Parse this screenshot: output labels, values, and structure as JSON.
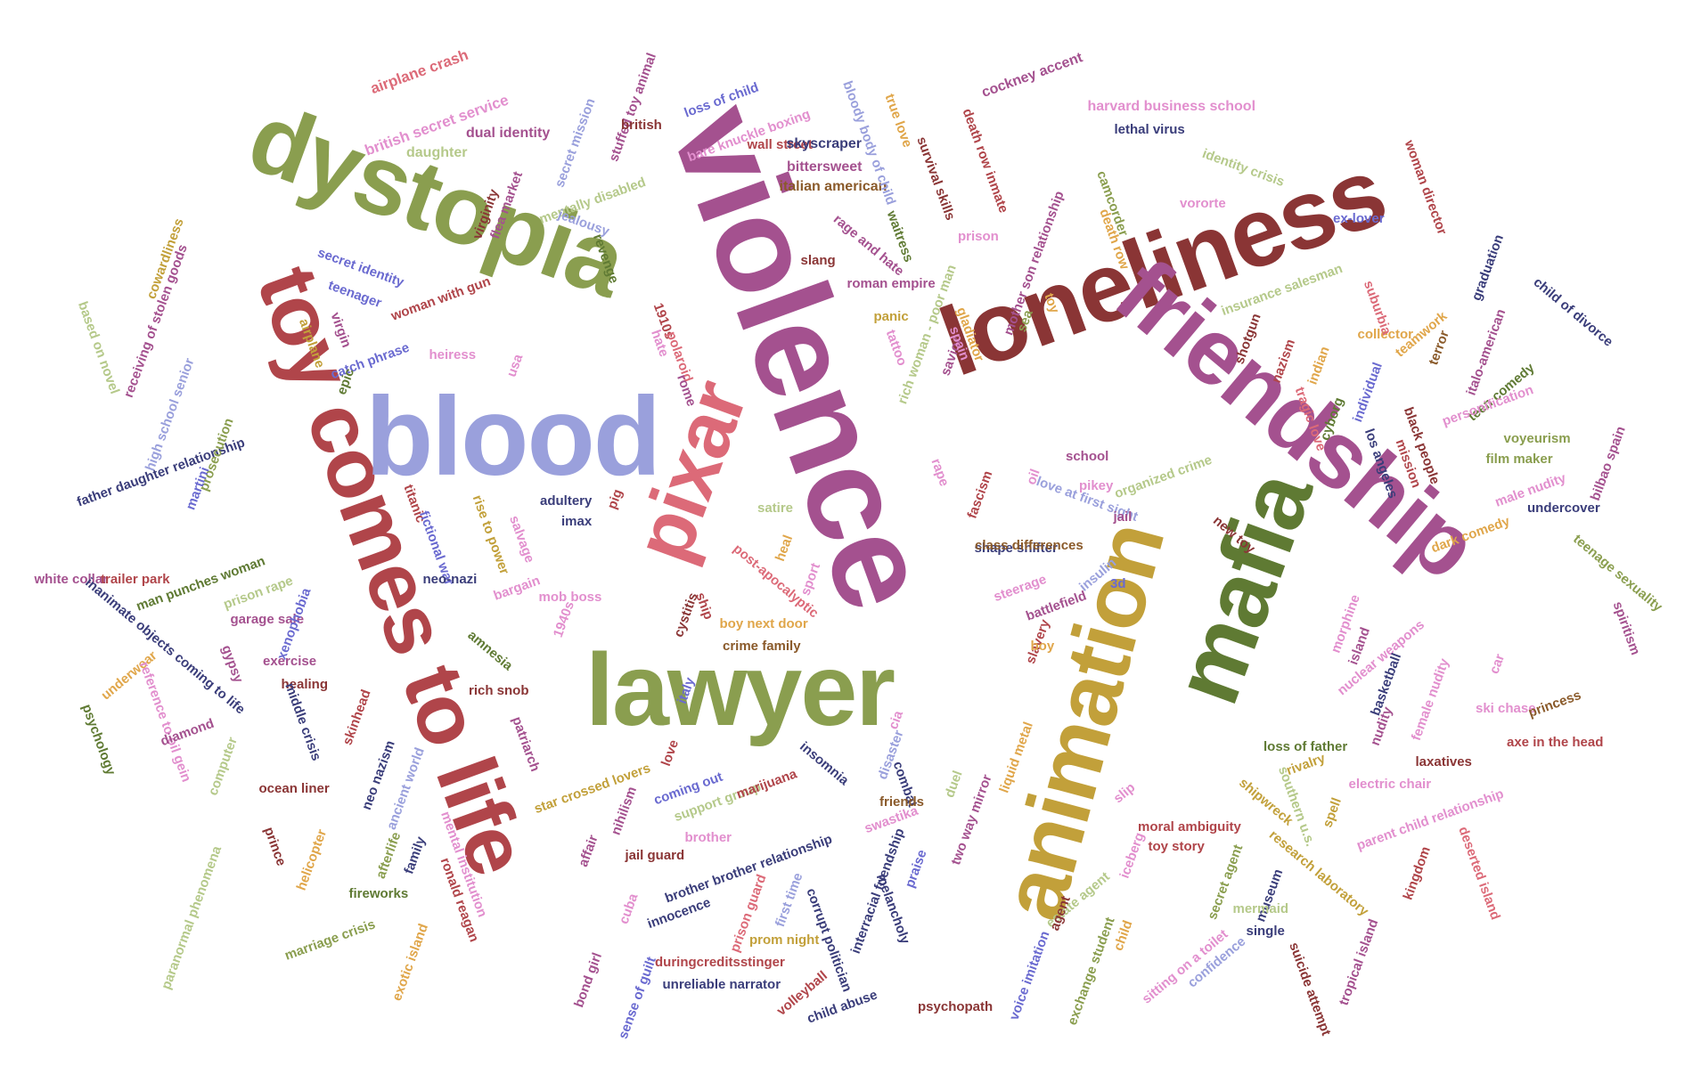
{
  "palette": {
    "purple": "#a4518f",
    "green": "#8a9e4f",
    "red": "#b0454a",
    "maroon": "#8a3535",
    "gold": "#c2a03a",
    "olive": "#5f7a33",
    "lavender": "#9aa0dc",
    "pink": "#dc6a78",
    "navy": "#3a3d7a",
    "lightgreen": "#b5c98a",
    "lightpink": "#e28fce",
    "orange": "#e0a64a",
    "brown": "#8a5a2a",
    "blue": "#6a6ad0",
    "teal": "#3b6a5a"
  },
  "words": [
    {
      "text": "violence",
      "color": "#a4518f"
    },
    {
      "text": "loneliness",
      "color": "#8a3535"
    },
    {
      "text": "friendship",
      "color": "#a4518f"
    },
    {
      "text": "dystopia",
      "color": "#8a9e4f"
    },
    {
      "text": "toy comes to life",
      "color": "#b0454a"
    },
    {
      "text": "blood",
      "color": "#9aa0dc"
    },
    {
      "text": "lawyer",
      "color": "#8a9e4f"
    },
    {
      "text": "pixar",
      "color": "#dc6a78"
    },
    {
      "text": "animation",
      "color": "#c2a03a"
    },
    {
      "text": "mafia",
      "color": "#5f7a33"
    },
    {
      "text": "airplane crash",
      "color": "#dc6a78"
    },
    {
      "text": "british secret service",
      "color": "#e28fce"
    },
    {
      "text": "dual identity",
      "color": "#a4518f"
    },
    {
      "text": "daughter",
      "color": "#b5c98a"
    },
    {
      "text": "secret mission",
      "color": "#9aa0dc"
    },
    {
      "text": "stuffed toy animal",
      "color": "#a4518f"
    },
    {
      "text": "british",
      "color": "#8a3535"
    },
    {
      "text": "loss of child",
      "color": "#6a6ad0"
    },
    {
      "text": "bare knuckle boxing",
      "color": "#e28fce"
    },
    {
      "text": "wall street",
      "color": "#b0454a"
    },
    {
      "text": "skyscraper",
      "color": "#3a3d7a"
    },
    {
      "text": "bittersweet",
      "color": "#a4518f"
    },
    {
      "text": "italian american",
      "color": "#8a5a2a"
    },
    {
      "text": "bloody body of child",
      "color": "#9aa0dc"
    },
    {
      "text": "true love",
      "color": "#e0a64a"
    },
    {
      "text": "survival skills",
      "color": "#8a3535"
    },
    {
      "text": "death row inmate",
      "color": "#b0454a"
    },
    {
      "text": "cockney accent",
      "color": "#a4518f"
    },
    {
      "text": "harvard business school",
      "color": "#e28fce"
    },
    {
      "text": "lethal virus",
      "color": "#3a3d7a"
    },
    {
      "text": "identity crisis",
      "color": "#b5c98a"
    },
    {
      "text": "woman director",
      "color": "#b0454a"
    },
    {
      "text": "cowardliness",
      "color": "#c2a03a"
    },
    {
      "text": "receiving of stolen goods",
      "color": "#a4518f"
    },
    {
      "text": "virginity",
      "color": "#8a3535"
    },
    {
      "text": "flea market",
      "color": "#a4518f"
    },
    {
      "text": "mentally disabled",
      "color": "#b5c98a"
    },
    {
      "text": "jealousy",
      "color": "#9aa0dc"
    },
    {
      "text": "revenge",
      "color": "#5f7a33"
    },
    {
      "text": "rage and hate",
      "color": "#a4518f"
    },
    {
      "text": "waitress",
      "color": "#5f7a33"
    },
    {
      "text": "slang",
      "color": "#8a3535"
    },
    {
      "text": "roman empire",
      "color": "#a4518f"
    },
    {
      "text": "mother son relationship",
      "color": "#a4518f"
    },
    {
      "text": "camcorder",
      "color": "#8a9e4f"
    },
    {
      "text": "death row",
      "color": "#e0a64a"
    },
    {
      "text": "vororte",
      "color": "#e28fce"
    },
    {
      "text": "prison",
      "color": "#e28fce"
    },
    {
      "text": "insurance salesman",
      "color": "#b5c98a"
    },
    {
      "text": "ex-lover",
      "color": "#6a6ad0"
    },
    {
      "text": "graduation",
      "color": "#3a3d7a"
    },
    {
      "text": "child of divorce",
      "color": "#3a3d7a"
    },
    {
      "text": "secret identity",
      "color": "#6a6ad0"
    },
    {
      "text": "teenager",
      "color": "#6a6ad0"
    },
    {
      "text": "virgin",
      "color": "#a4518f"
    },
    {
      "text": "woman with gun",
      "color": "#b0454a"
    },
    {
      "text": "catch phrase",
      "color": "#6a6ad0"
    },
    {
      "text": "heiress",
      "color": "#e28fce"
    },
    {
      "text": "airplane",
      "color": "#c2a03a"
    },
    {
      "text": "usa",
      "color": "#e28fce"
    },
    {
      "text": "1910s",
      "color": "#b0454a"
    },
    {
      "text": "hate",
      "color": "#e28fce"
    },
    {
      "text": "polaroid",
      "color": "#dc6a78"
    },
    {
      "text": "tattoo",
      "color": "#e28fce"
    },
    {
      "text": "panic",
      "color": "#c2a03a"
    },
    {
      "text": "rich woman - poor man",
      "color": "#b5c98a"
    },
    {
      "text": "savior",
      "color": "#a4518f"
    },
    {
      "text": "gladiator",
      "color": "#e0a64a"
    },
    {
      "text": "spain",
      "color": "#e28fce"
    },
    {
      "text": "sea",
      "color": "#8a9e4f"
    },
    {
      "text": "toy",
      "color": "#e0a64a"
    },
    {
      "text": "collector",
      "color": "#e0a64a"
    },
    {
      "text": "suburbia",
      "color": "#dc6a78"
    },
    {
      "text": "teamwork",
      "color": "#e0a64a"
    },
    {
      "text": "based on novel",
      "color": "#b5c98a"
    },
    {
      "text": "high school senior",
      "color": "#9aa0dc"
    },
    {
      "text": "father daughter relationship",
      "color": "#3a3d7a"
    },
    {
      "text": "prosecution",
      "color": "#8a9e4f"
    },
    {
      "text": "martini",
      "color": "#6a6ad0"
    },
    {
      "text": "epic",
      "color": "#5f7a33"
    },
    {
      "text": "rome",
      "color": "#a4518f"
    },
    {
      "text": "shotgun",
      "color": "#8a3535"
    },
    {
      "text": "nazism",
      "color": "#b0454a"
    },
    {
      "text": "indian",
      "color": "#e0a64a"
    },
    {
      "text": "tragic love",
      "color": "#dc6a78"
    },
    {
      "text": "individual",
      "color": "#6a6ad0"
    },
    {
      "text": "cyborg",
      "color": "#5f7a33"
    },
    {
      "text": "teen comedy",
      "color": "#5f7a33"
    },
    {
      "text": "personification",
      "color": "#e28fce"
    },
    {
      "text": "italo-american",
      "color": "#a4518f"
    },
    {
      "text": "terror",
      "color": "#8a5a2a"
    },
    {
      "text": "black people",
      "color": "#8a3535"
    },
    {
      "text": "mission",
      "color": "#b0454a"
    },
    {
      "text": "los angeles",
      "color": "#3a3d7a"
    },
    {
      "text": "voyeurism",
      "color": "#8a9e4f"
    },
    {
      "text": "film maker",
      "color": "#8a9e4f"
    },
    {
      "text": "bilbao spain",
      "color": "#a4518f"
    },
    {
      "text": "school",
      "color": "#a4518f"
    },
    {
      "text": "pikey",
      "color": "#e28fce"
    },
    {
      "text": "organized crime",
      "color": "#b5c98a"
    },
    {
      "text": "love at first sight",
      "color": "#9aa0dc"
    },
    {
      "text": "jail",
      "color": "#a4518f"
    },
    {
      "text": "fascism",
      "color": "#b0454a"
    },
    {
      "text": "shape shifter",
      "color": "#3a3d7a"
    },
    {
      "text": "class differences",
      "color": "#8a5a2a"
    },
    {
      "text": "rape",
      "color": "#e28fce"
    },
    {
      "text": "oil",
      "color": "#e28fce"
    },
    {
      "text": "titanic",
      "color": "#b0454a"
    },
    {
      "text": "fictional war",
      "color": "#6a6ad0"
    },
    {
      "text": "neo-nazi",
      "color": "#3a3d7a"
    },
    {
      "text": "rise to power",
      "color": "#c2a03a"
    },
    {
      "text": "salvage",
      "color": "#e28fce"
    },
    {
      "text": "adultery",
      "color": "#3a3d7a"
    },
    {
      "text": "imax",
      "color": "#3a3d7a"
    },
    {
      "text": "pig",
      "color": "#b0454a"
    },
    {
      "text": "satire",
      "color": "#b5c98a"
    },
    {
      "text": "heal",
      "color": "#e0a64a"
    },
    {
      "text": "sport",
      "color": "#e28fce"
    },
    {
      "text": "post-apocalyptic",
      "color": "#dc6a78"
    },
    {
      "text": "new toy",
      "color": "#8a3535"
    },
    {
      "text": "male nudity",
      "color": "#e28fce"
    },
    {
      "text": "undercover",
      "color": "#3a3d7a"
    },
    {
      "text": "white collar",
      "color": "#a4518f"
    },
    {
      "text": "trailer park",
      "color": "#b0454a"
    },
    {
      "text": "man punches woman",
      "color": "#5f7a33"
    },
    {
      "text": "prison rape",
      "color": "#b5c98a"
    },
    {
      "text": "garage sale",
      "color": "#a4518f"
    },
    {
      "text": "inanimate objects coming to life",
      "color": "#3a3d7a"
    },
    {
      "text": "xenophobia",
      "color": "#6a6ad0"
    },
    {
      "text": "bargain",
      "color": "#e28fce"
    },
    {
      "text": "mob boss",
      "color": "#e28fce"
    },
    {
      "text": "amnesia",
      "color": "#5f7a33"
    },
    {
      "text": "1940s",
      "color": "#e28fce"
    },
    {
      "text": "cystitis",
      "color": "#8a3535"
    },
    {
      "text": "ship",
      "color": "#b0454a"
    },
    {
      "text": "boy next door",
      "color": "#e0a64a"
    },
    {
      "text": "crime family",
      "color": "#8a5a2a"
    },
    {
      "text": "steerage",
      "color": "#e28fce"
    },
    {
      "text": "battlefield",
      "color": "#a4518f"
    },
    {
      "text": "insulin",
      "color": "#9aa0dc"
    },
    {
      "text": "3d",
      "color": "#6a6ad0"
    },
    {
      "text": "slavery",
      "color": "#b0454a"
    },
    {
      "text": "boy",
      "color": "#e0a64a"
    },
    {
      "text": "dark comedy",
      "color": "#e0a64a"
    },
    {
      "text": "teenage sexuality",
      "color": "#8a9e4f"
    },
    {
      "text": "spiritism",
      "color": "#a4518f"
    },
    {
      "text": "morphine",
      "color": "#e28fce"
    },
    {
      "text": "island",
      "color": "#a4518f"
    },
    {
      "text": "nuclear weapons",
      "color": "#e28fce"
    },
    {
      "text": "basketball",
      "color": "#3a3d7a"
    },
    {
      "text": "female nudity",
      "color": "#e28fce"
    },
    {
      "text": "car",
      "color": "#e28fce"
    },
    {
      "text": "ski chase",
      "color": "#e28fce"
    },
    {
      "text": "princess",
      "color": "#8a5a2a"
    },
    {
      "text": "nudity",
      "color": "#a4518f"
    },
    {
      "text": "psychology",
      "color": "#5f7a33"
    },
    {
      "text": "underwear",
      "color": "#e0a64a"
    },
    {
      "text": "reference to oil gein",
      "color": "#e28fce"
    },
    {
      "text": "diamond",
      "color": "#a4518f"
    },
    {
      "text": "gypsy",
      "color": "#a4518f"
    },
    {
      "text": "exercise",
      "color": "#a4518f"
    },
    {
      "text": "healing",
      "color": "#8a3535"
    },
    {
      "text": "middle crisis",
      "color": "#3a3d7a"
    },
    {
      "text": "skinhead",
      "color": "#b0454a"
    },
    {
      "text": "rich snob",
      "color": "#8a3535"
    },
    {
      "text": "italy",
      "color": "#6a6ad0"
    },
    {
      "text": "patriarch",
      "color": "#a4518f"
    },
    {
      "text": "computer",
      "color": "#b5c98a"
    },
    {
      "text": "ocean liner",
      "color": "#8a3535"
    },
    {
      "text": "neo nazism",
      "color": "#3a3d7a"
    },
    {
      "text": "ancient world",
      "color": "#9aa0dc"
    },
    {
      "text": "liquid metal",
      "color": "#e0a64a"
    },
    {
      "text": "cia",
      "color": "#e28fce"
    },
    {
      "text": "disaster",
      "color": "#9aa0dc"
    },
    {
      "text": "loss of father",
      "color": "#5f7a33"
    },
    {
      "text": "rivalry",
      "color": "#c2a03a"
    },
    {
      "text": "axe in the head",
      "color": "#b0454a"
    },
    {
      "text": "laxatives",
      "color": "#8a3535"
    },
    {
      "text": "electric chair",
      "color": "#e28fce"
    },
    {
      "text": "love",
      "color": "#b0454a"
    },
    {
      "text": "coming out",
      "color": "#6a6ad0"
    },
    {
      "text": "insomnia",
      "color": "#3a3d7a"
    },
    {
      "text": "combat",
      "color": "#3a3d7a"
    },
    {
      "text": "star crossed lovers",
      "color": "#c2a03a"
    },
    {
      "text": "support group",
      "color": "#b5c98a"
    },
    {
      "text": "nihilism",
      "color": "#a4518f"
    },
    {
      "text": "marijuana",
      "color": "#b0454a"
    },
    {
      "text": "friends",
      "color": "#8a5a2a"
    },
    {
      "text": "swastika",
      "color": "#e28fce"
    },
    {
      "text": "duel",
      "color": "#b5c98a"
    },
    {
      "text": "two way mirror",
      "color": "#a4518f"
    },
    {
      "text": "slip",
      "color": "#e28fce"
    },
    {
      "text": "shipwreck",
      "color": "#c2a03a"
    },
    {
      "text": "southern u.s.",
      "color": "#b5c98a"
    },
    {
      "text": "spell",
      "color": "#c2a03a"
    },
    {
      "text": "parent child relationship",
      "color": "#e28fce"
    },
    {
      "text": "prince",
      "color": "#8a3535"
    },
    {
      "text": "helicopter",
      "color": "#e0a64a"
    },
    {
      "text": "afterlife",
      "color": "#8a9e4f"
    },
    {
      "text": "family",
      "color": "#3a3d7a"
    },
    {
      "text": "mental institution",
      "color": "#e28fce"
    },
    {
      "text": "affair",
      "color": "#a4518f"
    },
    {
      "text": "jail guard",
      "color": "#8a3535"
    },
    {
      "text": "brother",
      "color": "#e28fce"
    },
    {
      "text": "brother brother relationship",
      "color": "#3a3d7a"
    },
    {
      "text": "interracial friendship",
      "color": "#3a3d7a"
    },
    {
      "text": "praise",
      "color": "#6a6ad0"
    },
    {
      "text": "moral ambiguity",
      "color": "#b0454a"
    },
    {
      "text": "iceberg",
      "color": "#e28fce"
    },
    {
      "text": "toy story",
      "color": "#b0454a"
    },
    {
      "text": "secret agent",
      "color": "#8a9e4f"
    },
    {
      "text": "research laboratory",
      "color": "#c2a03a"
    },
    {
      "text": "kingdom",
      "color": "#b0454a"
    },
    {
      "text": "deserted island",
      "color": "#dc6a78"
    },
    {
      "text": "paranormal phenomena",
      "color": "#b5c98a"
    },
    {
      "text": "fireworks",
      "color": "#5f7a33"
    },
    {
      "text": "ronald reagan",
      "color": "#b0454a"
    },
    {
      "text": "cuba",
      "color": "#e28fce"
    },
    {
      "text": "innocence",
      "color": "#3a3d7a"
    },
    {
      "text": "prison guard",
      "color": "#dc6a78"
    },
    {
      "text": "first time",
      "color": "#9aa0dc"
    },
    {
      "text": "melancholy",
      "color": "#3a3d7a"
    },
    {
      "text": "corrupt politician",
      "color": "#3a3d7a"
    },
    {
      "text": "estate agent",
      "color": "#b5c98a"
    },
    {
      "text": "agent",
      "color": "#8a3535"
    },
    {
      "text": "museum",
      "color": "#3a3d7a"
    },
    {
      "text": "mermaid",
      "color": "#b5c98a"
    },
    {
      "text": "single",
      "color": "#3a3d7a"
    },
    {
      "text": "marriage crisis",
      "color": "#8a9e4f"
    },
    {
      "text": "exotic island",
      "color": "#e0a64a"
    },
    {
      "text": "prom night",
      "color": "#c2a03a"
    },
    {
      "text": "duringcreditsstinger",
      "color": "#b0454a"
    },
    {
      "text": "unreliable narrator",
      "color": "#3a3d7a"
    },
    {
      "text": "psychopath",
      "color": "#8a3535"
    },
    {
      "text": "voice imitation",
      "color": "#6a6ad0"
    },
    {
      "text": "exchange student",
      "color": "#8a9e4f"
    },
    {
      "text": "child",
      "color": "#e0a64a"
    },
    {
      "text": "sitting on a toilet",
      "color": "#e28fce"
    },
    {
      "text": "confidence",
      "color": "#9aa0dc"
    },
    {
      "text": "suicide attempt",
      "color": "#8a3535"
    },
    {
      "text": "tropical island",
      "color": "#a4518f"
    },
    {
      "text": "bond girl",
      "color": "#a4518f"
    },
    {
      "text": "sense of guilt",
      "color": "#6a6ad0"
    },
    {
      "text": "volleyball",
      "color": "#b0454a"
    },
    {
      "text": "child abuse",
      "color": "#3a3d7a"
    }
  ]
}
